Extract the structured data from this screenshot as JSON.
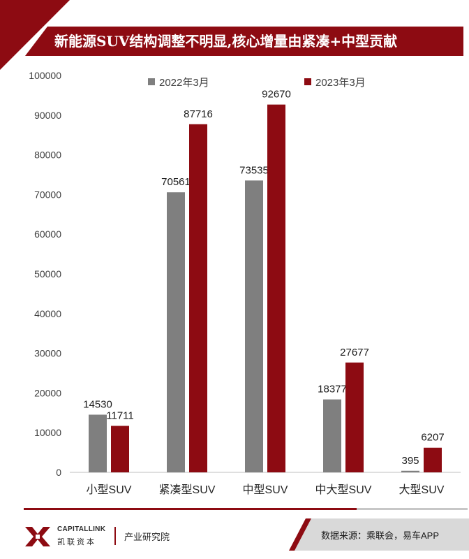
{
  "title": "新能源SUV结构调整不明显,核心增量由紧凑+中型贡献",
  "colors": {
    "brand": "#8d0b12",
    "series_2022": "#7f7f7f",
    "series_2023": "#8d0b12"
  },
  "chart_data": {
    "type": "bar",
    "categories": [
      "小型SUV",
      "紧凑型SUV",
      "中型SUV",
      "中大型SUV",
      "大型SUV"
    ],
    "series": [
      {
        "name": "2022年3月",
        "values": [
          14530,
          70561,
          73535,
          18377,
          395
        ]
      },
      {
        "name": "2023年3月",
        "values": [
          11711,
          87716,
          92670,
          27677,
          6207
        ]
      }
    ],
    "ylim": [
      0,
      100000
    ],
    "yticks": [
      "0",
      "10000",
      "20000",
      "30000",
      "40000",
      "50000",
      "60000",
      "70000",
      "80000",
      "90000",
      "100000"
    ],
    "legend_position": "top",
    "grid": false
  },
  "footer": {
    "logo_en": "CAPITALLINK",
    "logo_cn": "凯联资本",
    "dept": "产业研究院",
    "source": "数据来源：乘联会，易车APP"
  }
}
